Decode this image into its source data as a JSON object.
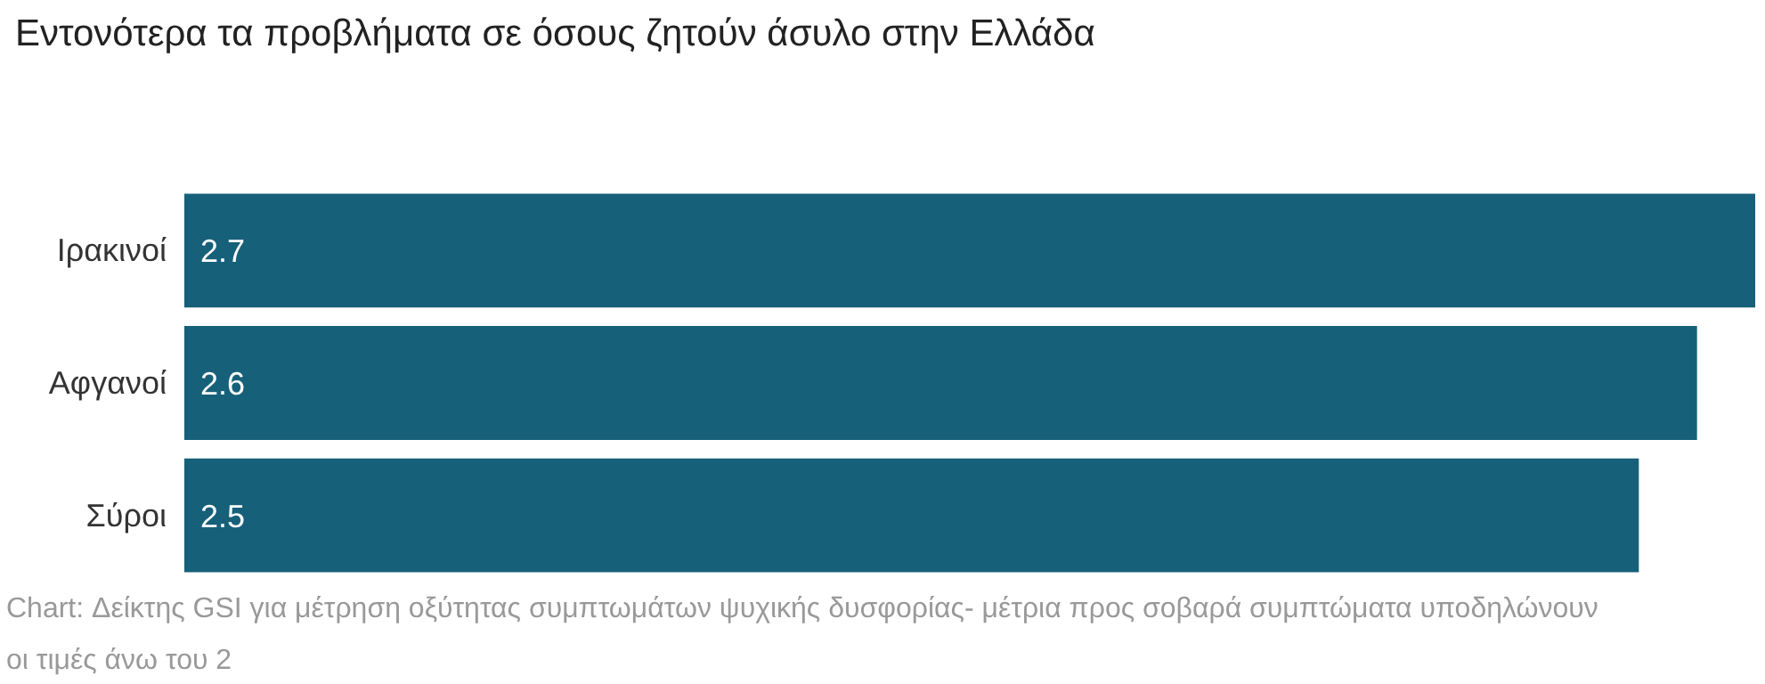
{
  "chart_data": {
    "type": "bar",
    "orientation": "horizontal",
    "title": "Εντονότερα τα προβλήματα σε όσους ζητούν άσυλο στην Ελλάδα",
    "categories": [
      "Ιρακινοί",
      "Αφγανοί",
      "Σύροι"
    ],
    "values": [
      2.7,
      2.6,
      2.5
    ],
    "color": "#17607a",
    "data_labels": true,
    "annotations": [
      "Chart: Δείκτης GSI για μέτρηση οξύτητας συμπτωμάτων ψυχικής δυσφορίας- μέτρια προς σοβαρά συμπτώματα υποδηλώνουν οι τιμές άνω του 2"
    ]
  }
}
